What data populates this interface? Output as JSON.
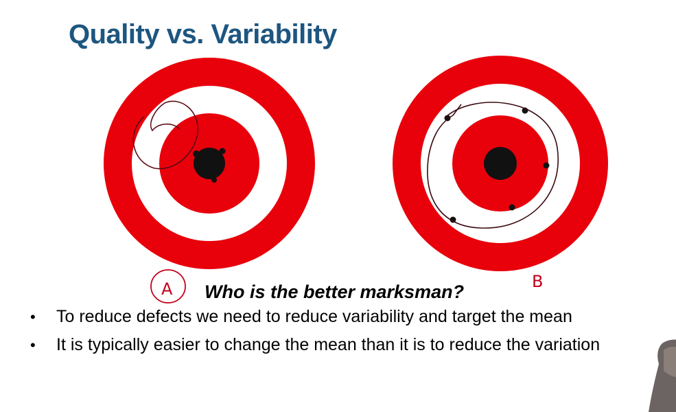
{
  "title": "Quality vs. Variability",
  "question": "Who is the better marksman?",
  "annotations": {
    "label_a": "A",
    "label_b": "B"
  },
  "bullets": [
    "To reduce defects we need to reduce variability and target the mean",
    "It is typically easier to change the mean than it is to reduce the variation"
  ],
  "colors": {
    "title": "#1d5680",
    "target_red": "#e8000b",
    "bullseye": "#111111",
    "ink": "#c2001a"
  }
}
